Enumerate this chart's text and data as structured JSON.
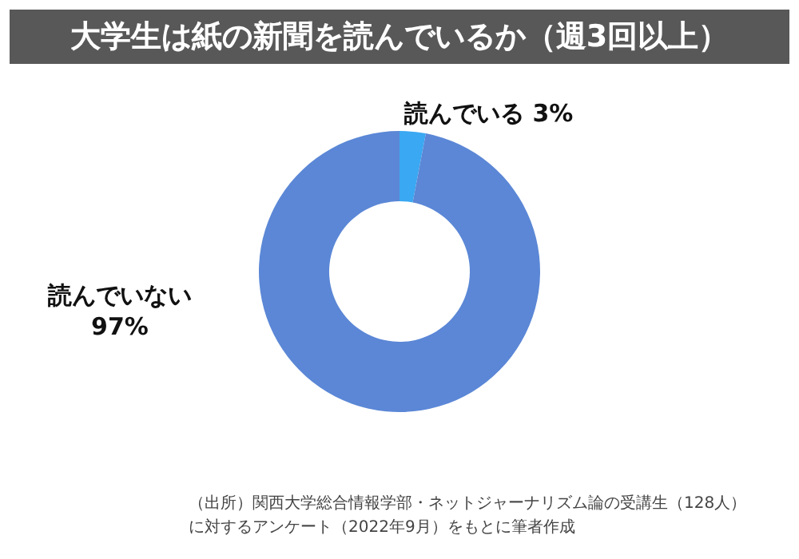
{
  "chart_data": {
    "type": "donut",
    "title": "大学生は紙の新聞を読んでいるか（週3回以上）",
    "categories": [
      "読んでいる",
      "読んでいない"
    ],
    "values": [
      3,
      97
    ],
    "value_labels": [
      "3%",
      "97%"
    ],
    "colors": [
      "#3aa8f2",
      "#5b87d6"
    ],
    "legend": false,
    "annotations": [
      "（出所）関西大学総合情報学部・ネットジャーナリズム論の受講生（128人）",
      "に対するアンケート（2022年9月）をもとに筆者作成"
    ]
  }
}
